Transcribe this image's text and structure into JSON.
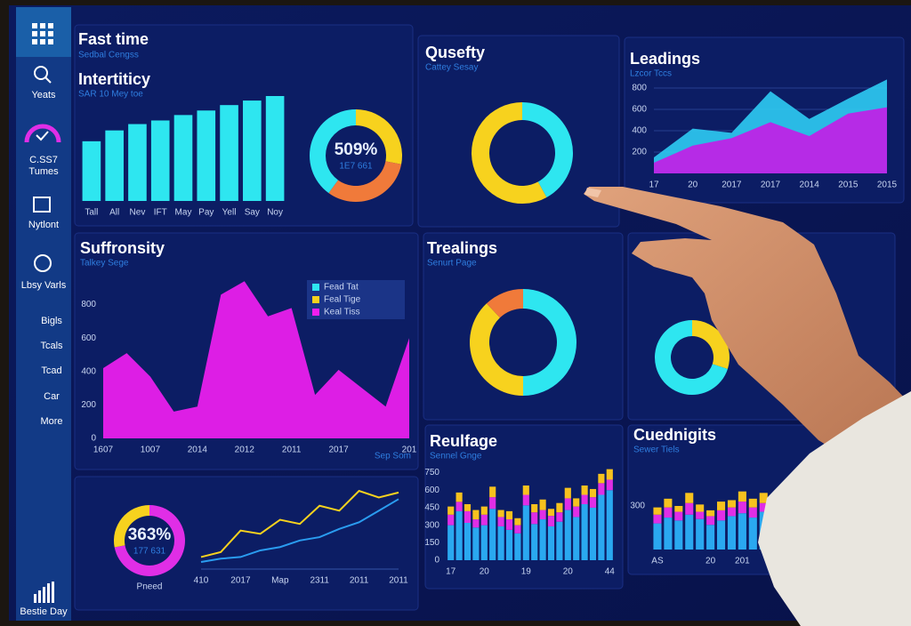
{
  "header": {
    "title": "Fast time",
    "subtitle": "Sedbal Cengss"
  },
  "sidebar": {
    "items": [
      "Yeats",
      "C.SS7",
      "Tumes",
      "Nytlont",
      "Lbsy Varls",
      "Bigls",
      "Tcals",
      "Tcad",
      "Car",
      "More"
    ],
    "footer": "Bestie Day"
  },
  "chart_data": [
    {
      "type": "bar",
      "title": "Intertiticy",
      "subtitle": "SAR 10 Mey toe",
      "categories": [
        "Tall",
        "All",
        "Nev",
        "IFT",
        "May",
        "Pay",
        "Yell",
        "Say",
        "Noy"
      ],
      "values": [
        66,
        78,
        85,
        89,
        95,
        100,
        106,
        111,
        116
      ],
      "color": "#2ee6f0"
    },
    {
      "type": "donut",
      "center_label": "509%",
      "center_sublabel": "1E7 661",
      "values": [
        28,
        32,
        40
      ],
      "colors": [
        "#f7d21e",
        "#f07a3a",
        "#2ee6f0"
      ]
    },
    {
      "type": "donut",
      "title": "Qusefty",
      "subtitle": "Cattey Sesay",
      "values": [
        42,
        58
      ],
      "colors": [
        "#2ee6f0",
        "#f7d21e"
      ]
    },
    {
      "type": "area",
      "title": "Leadings",
      "subtitle": "Lzcor Tccs",
      "categories": [
        "17",
        "20",
        "2017",
        "2017",
        "2014",
        "2015",
        "2015"
      ],
      "series": [
        {
          "color": "#2ec8f0",
          "values": [
            150,
            420,
            380,
            770,
            510,
            700,
            880
          ]
        },
        {
          "color": "#c21ee6",
          "values": [
            100,
            260,
            330,
            480,
            350,
            560,
            620
          ]
        }
      ],
      "ylim": [
        0,
        1000
      ],
      "yticks": [
        200,
        400,
        600,
        800
      ],
      "grid": true
    },
    {
      "type": "area",
      "title": "Suffronsity",
      "subtitle": "Talkey Sege",
      "categories": [
        "1607",
        null,
        "1007",
        null,
        "2014",
        null,
        "2012",
        null,
        "2011",
        null,
        "2017",
        null,
        null,
        "201"
      ],
      "series": [
        {
          "color": "#f01ef0",
          "values": [
            420,
            510,
            370,
            160,
            190,
            860,
            940,
            730,
            780,
            260,
            410,
            300,
            190,
            600
          ]
        }
      ],
      "ylim": [
        0,
        1000
      ],
      "yticks": [
        0,
        200,
        400,
        600,
        800
      ],
      "grid": false,
      "legend": [
        {
          "name": "Fead Tat",
          "color": "#2ee6f0"
        },
        {
          "name": "Feal Tige",
          "color": "#f7d21e"
        },
        {
          "name": "Keal Tiss",
          "color": "#f01ef0"
        }
      ],
      "note": "Sep Som"
    },
    {
      "type": "donut",
      "title": "Trealings",
      "subtitle": "Senurt Page",
      "values": [
        50,
        38,
        12
      ],
      "colors": [
        "#2ee6f0",
        "#f7d21e",
        "#f07a3a"
      ]
    },
    {
      "type": "donut",
      "values": [
        30,
        70
      ],
      "colors": [
        "#f7d21e",
        "#2ee6f0"
      ]
    },
    {
      "type": "stacked-bar",
      "title": "Reulfage",
      "subtitle": "Sennel Gnge",
      "categories": [
        "17",
        null,
        null,
        null,
        "20",
        null,
        null,
        null,
        null,
        "19",
        null,
        null,
        null,
        null,
        "20",
        null,
        null,
        null,
        null,
        "44"
      ],
      "series": [
        {
          "color": "#2aa8f0",
          "values": [
            300,
            420,
            320,
            280,
            300,
            440,
            290,
            260,
            230,
            470,
            310,
            350,
            290,
            330,
            430,
            370,
            480,
            450,
            560,
            600
          ]
        },
        {
          "color": "#e02ee6",
          "values": [
            90,
            80,
            100,
            70,
            90,
            100,
            80,
            90,
            70,
            90,
            100,
            80,
            90,
            80,
            100,
            90,
            80,
            90,
            100,
            90
          ]
        },
        {
          "color": "#f7c21e",
          "values": [
            70,
            80,
            60,
            80,
            70,
            90,
            60,
            70,
            60,
            80,
            70,
            90,
            60,
            80,
            90,
            70,
            80,
            70,
            80,
            90
          ]
        }
      ],
      "ylim": [
        0,
        800
      ],
      "yticks": [
        0,
        150,
        300,
        450,
        600,
        750
      ]
    },
    {
      "type": "stacked-bar",
      "title": "Cuednigits",
      "subtitle": "Sewer Tiels",
      "categories": [
        "AS",
        null,
        null,
        null,
        null,
        "20",
        null,
        null,
        "201",
        null,
        null,
        null,
        null,
        null
      ],
      "series": [
        {
          "color": "#2aa8f0",
          "values": [
            180,
            220,
            200,
            240,
            210,
            170,
            200,
            230,
            250,
            220,
            260,
            240,
            270,
            250
          ]
        },
        {
          "color": "#e02ee6",
          "values": [
            60,
            70,
            60,
            80,
            50,
            60,
            70,
            60,
            80,
            70,
            60,
            80,
            70,
            60
          ]
        },
        {
          "color": "#f7c21e",
          "values": [
            50,
            60,
            40,
            70,
            50,
            40,
            60,
            50,
            70,
            60,
            70,
            50,
            60,
            70
          ]
        }
      ],
      "ylim": [
        0,
        600
      ],
      "yticks": [
        300
      ]
    },
    {
      "type": "donut",
      "center_label": "363%",
      "center_sublabel": "177 631",
      "label": "Pneed",
      "values": [
        72,
        28
      ],
      "colors": [
        "#e02ee6",
        "#f7d21e"
      ]
    },
    {
      "type": "line",
      "categories": [
        "410",
        null,
        "2017",
        null,
        "Map",
        null,
        "2311",
        null,
        "2011",
        null,
        "2011"
      ],
      "series": [
        {
          "color": "#f7d21e",
          "values": [
            10,
            16,
            42,
            38,
            55,
            50,
            72,
            66,
            90,
            82,
            88
          ]
        },
        {
          "color": "#2a9cf0",
          "values": [
            4,
            8,
            10,
            18,
            22,
            30,
            34,
            44,
            52,
            66,
            80
          ]
        }
      ]
    }
  ]
}
